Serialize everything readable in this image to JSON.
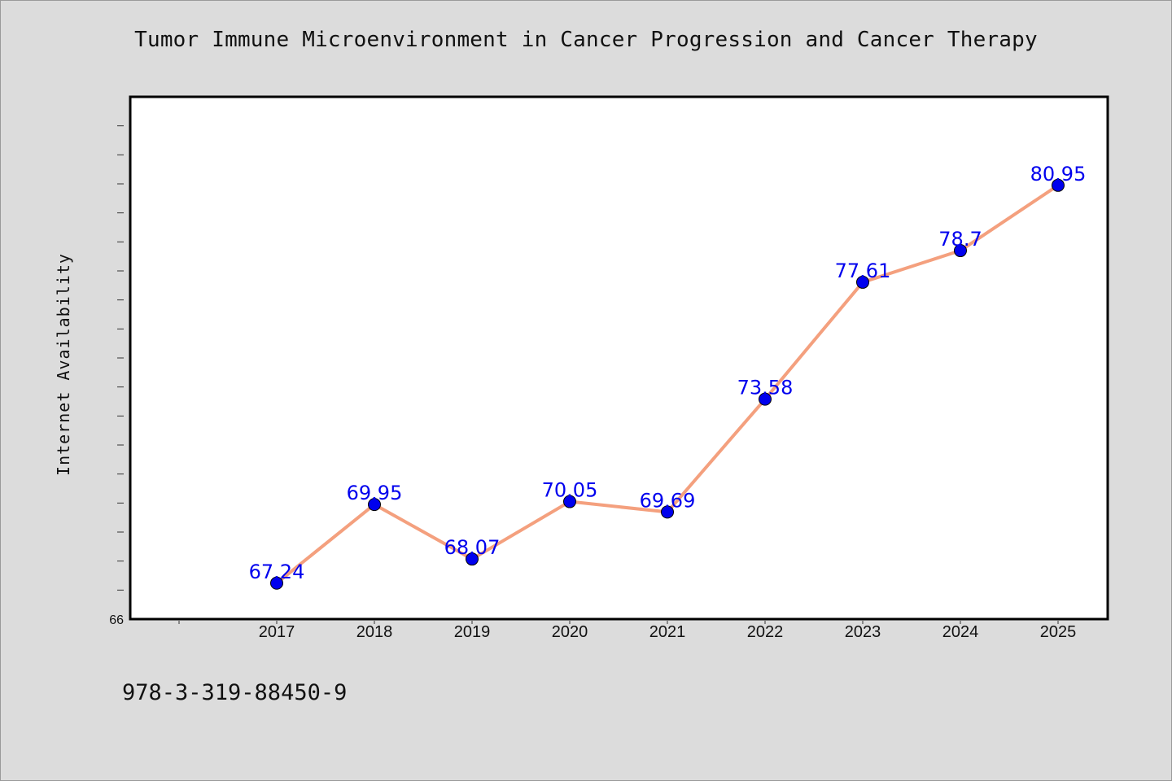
{
  "title": "Tumor Immune Microenvironment in Cancer Progression and Cancer Therapy",
  "footer_text": "978-3-319-88450-9",
  "colors": {
    "background": "#dcdcdc",
    "plot_background": "#ffffff",
    "line": "#f4a07e",
    "marker": "#0000ee",
    "data_label": "#0000ee"
  },
  "chart_data": {
    "type": "line",
    "title": "Tumor Immune Microenvironment in Cancer Progression and Cancer Therapy",
    "xlabel": "",
    "ylabel": "Internet Availability",
    "categories": [
      "2017",
      "2018",
      "2019",
      "2020",
      "2021",
      "2022",
      "2023",
      "2024",
      "2025"
    ],
    "series": [
      {
        "values": [
          67.24,
          69.95,
          68.07,
          70.05,
          69.69,
          73.58,
          77.61,
          78.7,
          80.95
        ],
        "labels": [
          "67.24",
          "69.95",
          "68.07",
          "70.05",
          "69.69",
          "73.58",
          "77.61",
          "78.7",
          "80.95"
        ]
      }
    ],
    "ylim": [
      66,
      84
    ],
    "y_tick_labels": [
      "66"
    ],
    "grid": false,
    "legend": "none"
  }
}
